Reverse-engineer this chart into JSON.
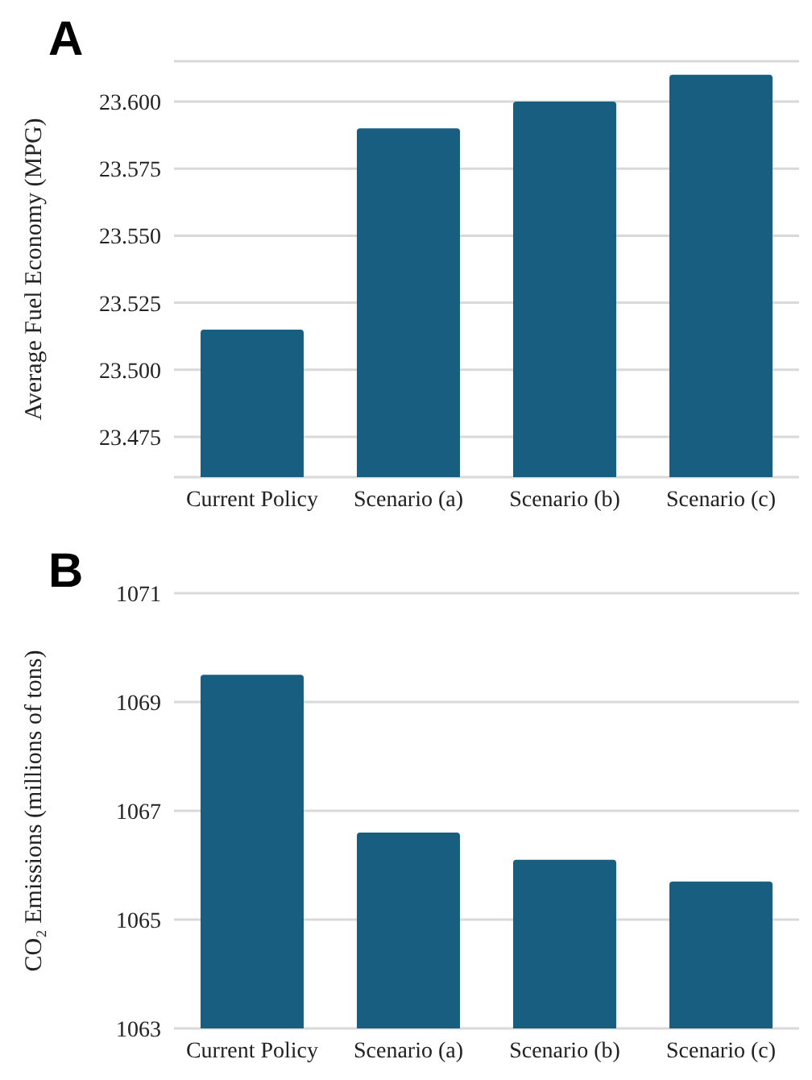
{
  "chart_data": [
    {
      "type": "bar",
      "title": "A",
      "ylabel": "Average Fuel Economy (MPG)",
      "categories": [
        "Current Policy",
        "Scenario (a)",
        "Scenario (b)",
        "Scenario (c)"
      ],
      "values": [
        23.515,
        23.59,
        23.6,
        23.61
      ],
      "color": "#175e80",
      "ylim": [
        23.46,
        23.615
      ],
      "yticks": [
        {
          "value": 23.475,
          "label": "23.475"
        },
        {
          "value": 23.5,
          "label": "23.500"
        },
        {
          "value": 23.525,
          "label": "23.525"
        },
        {
          "value": 23.55,
          "label": "23.550"
        },
        {
          "value": 23.575,
          "label": "23.575"
        },
        {
          "value": 23.6,
          "label": "23.600"
        }
      ],
      "grid": "y"
    },
    {
      "type": "bar",
      "title": "B",
      "ylabel": "CO₂ Emissions (millions of tons)",
      "categories": [
        "Current Policy",
        "Scenario (a)",
        "Scenario (b)",
        "Scenario (c)"
      ],
      "values": [
        1069.5,
        1066.6,
        1066.1,
        1065.7
      ],
      "color": "#175e80",
      "ylim": [
        1063,
        1071
      ],
      "yticks": [
        1063,
        1065,
        1067,
        1069,
        1071
      ],
      "grid": "y"
    }
  ]
}
